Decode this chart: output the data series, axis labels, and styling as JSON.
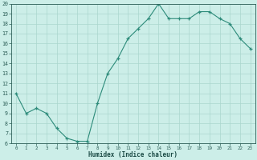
{
  "x": [
    0,
    1,
    2,
    3,
    4,
    5,
    6,
    7,
    8,
    9,
    10,
    11,
    12,
    13,
    14,
    15,
    16,
    17,
    18,
    19,
    20,
    21,
    22,
    23
  ],
  "y": [
    11,
    9,
    9.5,
    9,
    7.5,
    6.5,
    6.2,
    6.2,
    10,
    13,
    14.5,
    16.5,
    17.5,
    18.5,
    20,
    18.5,
    18.5,
    18.5,
    19.2,
    19.2,
    18.5,
    18,
    16.5,
    15.5
  ],
  "xlabel": "Humidex (Indice chaleur)",
  "ylim": [
    6,
    20
  ],
  "xlim": [
    -0.5,
    23.5
  ],
  "yticks": [
    6,
    7,
    8,
    9,
    10,
    11,
    12,
    13,
    14,
    15,
    16,
    17,
    18,
    19,
    20
  ],
  "xticks": [
    0,
    1,
    2,
    3,
    4,
    5,
    6,
    7,
    8,
    9,
    10,
    11,
    12,
    13,
    14,
    15,
    16,
    17,
    18,
    19,
    20,
    21,
    22,
    23
  ],
  "line_color": "#2d8b7a",
  "marker_color": "#2d8b7a",
  "bg_color": "#cceee8",
  "grid_color": "#aad6ce",
  "tick_label_color": "#2d5f58",
  "xlabel_color": "#1a4a44",
  "spine_color": "#2d5f58"
}
